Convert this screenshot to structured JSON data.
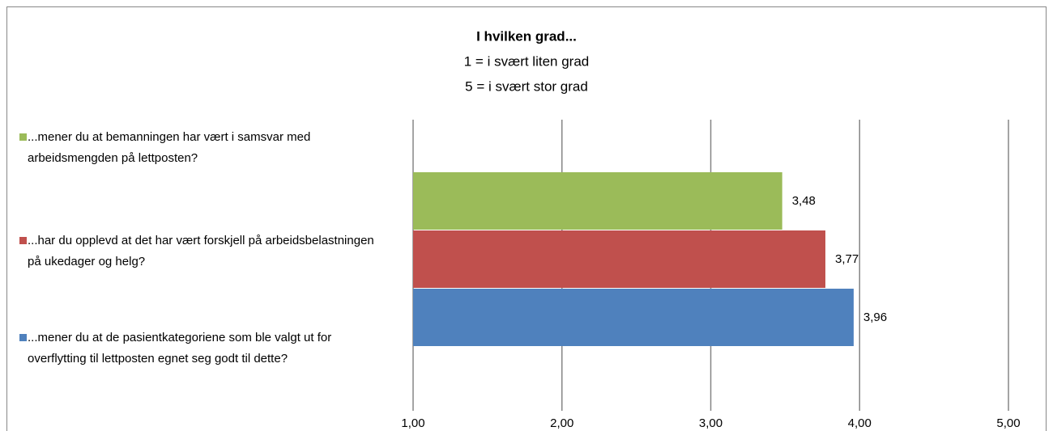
{
  "chart_data": {
    "type": "barh",
    "title": "I hvilken grad...",
    "subtitle": [
      "1 = i svært liten grad",
      "5 = i svært stor grad"
    ],
    "series": [
      {
        "name": "...mener du at bemanningen har vært i samsvar med arbeidsmengden på lettposten?",
        "color": "#9bbb59",
        "values": [
          3.48
        ],
        "value_labels": [
          "3,48"
        ]
      },
      {
        "name": "...har du opplevd at det har vært forskjell på arbeidsbelastningen på ukedager og helg?",
        "color": "#c0504d",
        "values": [
          3.77
        ],
        "value_labels": [
          "3,77"
        ]
      },
      {
        "name": "...mener du at de pasientkategoriene som ble valgt ut for overflytting til lettposten egnet seg godt til dette?",
        "color": "#4f81bd",
        "values": [
          3.96
        ],
        "value_labels": [
          "3,96"
        ]
      }
    ],
    "xlim": [
      1,
      5
    ],
    "xticks": [
      {
        "value": 1,
        "label": "1,00"
      },
      {
        "value": 2,
        "label": "2,00"
      },
      {
        "value": 3,
        "label": "3,00"
      },
      {
        "value": 4,
        "label": "4,00"
      },
      {
        "value": 5,
        "label": "5,00"
      }
    ],
    "grid": true,
    "legend": "left"
  }
}
